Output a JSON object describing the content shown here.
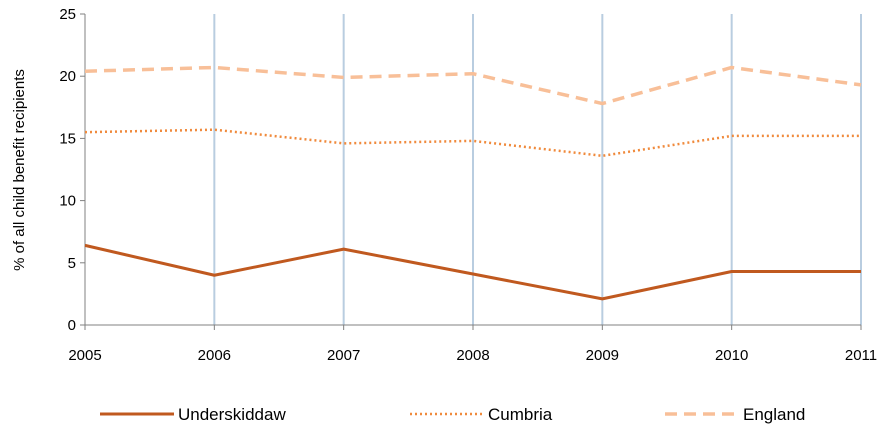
{
  "chart_data": {
    "type": "line",
    "title": "",
    "xlabel": "",
    "ylabel": "% of all child benefit recipients",
    "x": [
      "2005",
      "2006",
      "2007",
      "2008",
      "2009",
      "2010",
      "2011"
    ],
    "ylim": [
      0,
      25
    ],
    "yticks": [
      "0",
      "5",
      "10",
      "15",
      "20",
      "25"
    ],
    "grid": "vertical lines at each year",
    "legend_position": "bottom",
    "series": [
      {
        "name": "Underskiddaw",
        "values": [
          6.4,
          4.0,
          6.1,
          4.1,
          2.1,
          4.3,
          4.3
        ],
        "color": "#c0591f",
        "style": "solid"
      },
      {
        "name": "Cumbria",
        "values": [
          15.5,
          15.7,
          14.6,
          14.8,
          13.6,
          15.2,
          15.2
        ],
        "color": "#f08a3c",
        "style": "dotted"
      },
      {
        "name": "England",
        "values": [
          20.4,
          20.7,
          19.9,
          20.2,
          17.8,
          20.7,
          19.3
        ],
        "color": "#f8bf98",
        "style": "dashed"
      }
    ]
  }
}
